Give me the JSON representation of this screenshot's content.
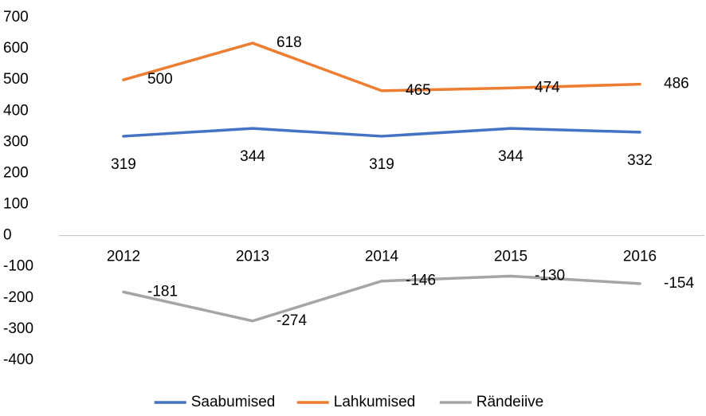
{
  "chart_data": {
    "type": "line",
    "categories": [
      "2012",
      "2013",
      "2014",
      "2015",
      "2016"
    ],
    "series": [
      {
        "name": "Saabumised",
        "color": "#4472c4",
        "values": [
          319,
          344,
          319,
          344,
          332
        ]
      },
      {
        "name": "Lahkumised",
        "color": "#ed7d31",
        "values": [
          500,
          618,
          465,
          474,
          486
        ]
      },
      {
        "name": "Rändeiive",
        "color": "#a5a5a5",
        "values": [
          -181,
          -274,
          -146,
          -130,
          -154
        ]
      }
    ],
    "ylim": [
      -400,
      700
    ],
    "yticks": [
      -400,
      -300,
      -200,
      -100,
      0,
      100,
      200,
      300,
      400,
      500,
      600,
      700
    ],
    "grid": false,
    "legend": "bottom"
  }
}
